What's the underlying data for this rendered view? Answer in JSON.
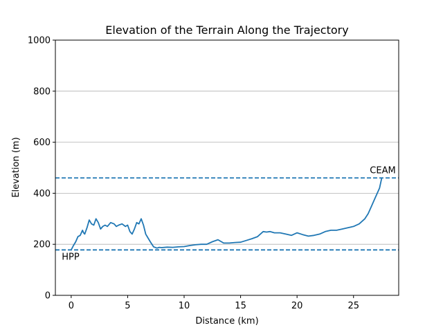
{
  "chart_data": {
    "type": "line",
    "title": "Elevation of the Terrain Along the Trajectory",
    "xlabel": "Distance (km)",
    "ylabel": "Elevation (m)",
    "xlim": [
      -1.4,
      29
    ],
    "ylim": [
      0,
      1000
    ],
    "xticks": [
      0,
      5,
      10,
      15,
      20,
      25
    ],
    "yticks": [
      0,
      200,
      400,
      600,
      800,
      1000
    ],
    "grid": "y-axis only",
    "line_color": "#1f77b4",
    "series": [
      {
        "x": [
          0.0,
          0.2,
          0.4,
          0.6,
          0.8,
          1.0,
          1.1,
          1.2,
          1.4,
          1.6,
          1.8,
          2.0,
          2.2,
          2.4,
          2.6,
          2.8,
          3.0,
          3.2,
          3.5,
          3.8,
          4.0,
          4.2,
          4.5,
          4.8,
          5.0,
          5.2,
          5.4,
          5.6,
          5.8,
          6.0,
          6.2,
          6.4,
          6.6,
          6.8,
          7.0,
          7.3,
          7.6,
          7.8,
          8.0,
          8.5,
          9.0,
          9.5,
          10.0,
          10.5,
          11.0,
          11.5,
          12.0,
          12.5,
          13.0,
          13.5,
          14.0,
          14.5,
          15.0,
          15.5,
          16.0,
          16.5,
          17.0,
          17.3,
          17.6,
          18.0,
          18.5,
          19.0,
          19.5,
          20.0,
          20.5,
          21.0,
          21.5,
          22.0,
          22.5,
          23.0,
          23.5,
          24.0,
          24.5,
          25.0,
          25.5,
          26.0,
          26.3,
          26.6,
          26.9,
          27.1,
          27.3,
          27.5
        ],
        "values": [
          178,
          195,
          210,
          230,
          235,
          255,
          245,
          240,
          265,
          295,
          280,
          275,
          300,
          285,
          260,
          270,
          275,
          270,
          285,
          280,
          270,
          275,
          280,
          270,
          275,
          250,
          240,
          260,
          285,
          280,
          300,
          275,
          240,
          225,
          210,
          190,
          185,
          188,
          187,
          189,
          188,
          190,
          191,
          195,
          198,
          200,
          200,
          210,
          218,
          205,
          205,
          207,
          208,
          215,
          222,
          230,
          250,
          248,
          250,
          245,
          245,
          240,
          235,
          245,
          238,
          232,
          235,
          240,
          250,
          255,
          255,
          260,
          265,
          270,
          280,
          300,
          320,
          350,
          380,
          400,
          420,
          460
        ]
      }
    ],
    "reference_lines": [
      {
        "y": 460,
        "label": "CEAM"
      },
      {
        "y": 178,
        "label": "HPP"
      }
    ]
  }
}
